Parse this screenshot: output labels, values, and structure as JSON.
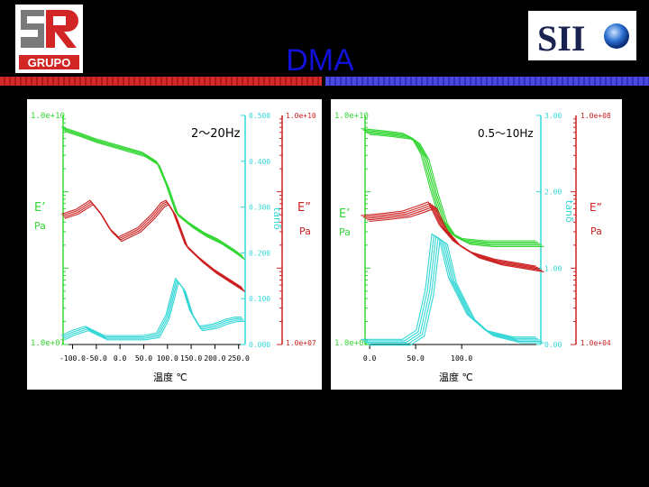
{
  "header": {
    "title": "DMA",
    "left_logo_text": "GRUPO",
    "left_logo_mark": "SR",
    "right_logo_text": "SII"
  },
  "colors": {
    "storage_modulus": "#33d633",
    "loss_modulus": "#cc2020",
    "tan_delta": "#33d6d6",
    "title": "#1111d8",
    "bar_red": "#d52a2a",
    "bar_blue": "#3d3dd8"
  },
  "chart_data": [
    {
      "type": "line",
      "frequency_label": "2～20Hz",
      "xlabel": "温度 ℃",
      "xticks": [
        "-100.0",
        "-50.0",
        "0.0",
        "50.0",
        "100.0",
        "150.0",
        "200.0",
        "250.0"
      ],
      "xlim": [
        -120,
        260
      ],
      "axis_labels": {
        "e1": "E’",
        "e1_unit": "Pa",
        "tan": "tanδ",
        "e2": "E”",
        "e2_unit": "Pa"
      },
      "left_axis": {
        "top": "1.0e+10",
        "bottom": "1.0e+07"
      },
      "tan_axis": {
        "ticks": [
          "0.500",
          "0.400",
          "0.300",
          "0.200",
          "0.100",
          "0.000"
        ]
      },
      "right_axis": {
        "top": "1.0e+10",
        "bottom": "1.0e+07"
      },
      "series": [
        {
          "key": "E1",
          "color_key": "storage_modulus",
          "copies": 4,
          "points": [
            [
              -120,
              0.06
            ],
            [
              -90,
              0.08
            ],
            [
              -50,
              0.11
            ],
            [
              0,
              0.14
            ],
            [
              50,
              0.17
            ],
            [
              80,
              0.21
            ],
            [
              100,
              0.31
            ],
            [
              120,
              0.43
            ],
            [
              150,
              0.48
            ],
            [
              180,
              0.52
            ],
            [
              210,
              0.55
            ],
            [
              240,
              0.59
            ],
            [
              260,
              0.62
            ]
          ]
        },
        {
          "key": "E2",
          "color_key": "loss_modulus",
          "copies": 4,
          "points": [
            [
              -120,
              0.44
            ],
            [
              -90,
              0.42
            ],
            [
              -60,
              0.38
            ],
            [
              -40,
              0.43
            ],
            [
              -20,
              0.5
            ],
            [
              0,
              0.54
            ],
            [
              40,
              0.5
            ],
            [
              70,
              0.44
            ],
            [
              90,
              0.39
            ],
            [
              100,
              0.38
            ],
            [
              115,
              0.43
            ],
            [
              140,
              0.57
            ],
            [
              170,
              0.63
            ],
            [
              200,
              0.68
            ],
            [
              230,
              0.72
            ],
            [
              260,
              0.76
            ]
          ]
        },
        {
          "key": "tan",
          "color_key": "tan_delta",
          "copies": 4,
          "points": [
            [
              -120,
              0.97
            ],
            [
              -100,
              0.95
            ],
            [
              -70,
              0.93
            ],
            [
              -50,
              0.95
            ],
            [
              -30,
              0.97
            ],
            [
              0,
              0.97
            ],
            [
              50,
              0.97
            ],
            [
              80,
              0.96
            ],
            [
              100,
              0.88
            ],
            [
              120,
              0.72
            ],
            [
              135,
              0.76
            ],
            [
              150,
              0.86
            ],
            [
              170,
              0.93
            ],
            [
              200,
              0.92
            ],
            [
              225,
              0.9
            ],
            [
              245,
              0.89
            ],
            [
              260,
              0.89
            ]
          ]
        }
      ]
    },
    {
      "type": "line",
      "frequency_label": "0.5～10Hz",
      "xlabel": "温度 ℃",
      "xticks": [
        "0.0",
        "50.0",
        "100.0"
      ],
      "xlim": [
        -5,
        185
      ],
      "axis_labels": {
        "e1": "E’",
        "e1_unit": "Pa",
        "tan": "tanδ",
        "e2": "E”",
        "e2_unit": "Pa"
      },
      "left_axis": {
        "top": "1.0e+10",
        "bottom": "1.0e+07"
      },
      "tan_axis": {
        "ticks": [
          "3.00",
          "2.00",
          "1.00",
          "0.00"
        ]
      },
      "right_axis": {
        "top": "1.0e+08",
        "bottom": "1.0e+04"
      },
      "series": [
        {
          "key": "E1",
          "color_key": "storage_modulus",
          "copies": 5,
          "points": [
            [
              -5,
              0.07
            ],
            [
              20,
              0.08
            ],
            [
              40,
              0.09
            ],
            [
              50,
              0.11
            ],
            [
              60,
              0.18
            ],
            [
              70,
              0.33
            ],
            [
              80,
              0.46
            ],
            [
              90,
              0.52
            ],
            [
              105,
              0.55
            ],
            [
              130,
              0.56
            ],
            [
              185,
              0.56
            ]
          ]
        },
        {
          "key": "E2",
          "color_key": "loss_modulus",
          "copies": 5,
          "points": [
            [
              -5,
              0.45
            ],
            [
              20,
              0.44
            ],
            [
              40,
              0.43
            ],
            [
              55,
              0.41
            ],
            [
              68,
              0.39
            ],
            [
              80,
              0.49
            ],
            [
              95,
              0.56
            ],
            [
              115,
              0.61
            ],
            [
              140,
              0.64
            ],
            [
              185,
              0.67
            ]
          ]
        },
        {
          "key": "tan",
          "color_key": "tan_delta",
          "copies": 5,
          "points": [
            [
              -5,
              0.99
            ],
            [
              20,
              0.99
            ],
            [
              40,
              0.99
            ],
            [
              55,
              0.95
            ],
            [
              65,
              0.77
            ],
            [
              72,
              0.53
            ],
            [
              80,
              0.55
            ],
            [
              90,
              0.72
            ],
            [
              110,
              0.88
            ],
            [
              130,
              0.95
            ],
            [
              160,
              0.98
            ],
            [
              185,
              0.98
            ]
          ]
        }
      ]
    }
  ]
}
